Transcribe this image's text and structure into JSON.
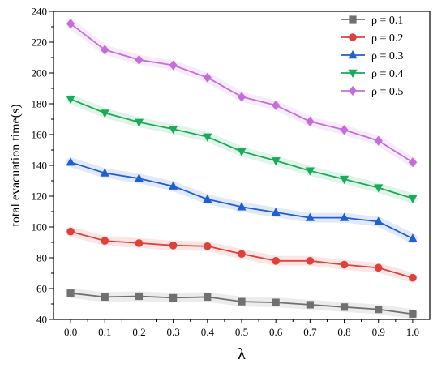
{
  "chart_data": {
    "type": "line",
    "title": "",
    "xlabel": "λ",
    "ylabel": "total evacuation time(s)",
    "x": [
      0.0,
      0.1,
      0.2,
      0.3,
      0.4,
      0.5,
      0.6,
      0.7,
      0.8,
      0.9,
      1.0
    ],
    "x_tick_labels": [
      "0.0",
      "0.1",
      "0.2",
      "0.3",
      "0.4",
      "0.5",
      "0.6",
      "0.7",
      "0.8",
      "0.9",
      "1.0"
    ],
    "xlim": [
      -0.05,
      1.05
    ],
    "ylim": [
      40,
      240
    ],
    "y_ticks": [
      40,
      60,
      80,
      100,
      120,
      140,
      160,
      180,
      200,
      220,
      240
    ],
    "grid": false,
    "legend_position": "top-right",
    "series": [
      {
        "name": "ρ = 0.1",
        "color": "#707070",
        "marker": "square",
        "values": [
          57,
          54.5,
          55,
          54,
          54.5,
          51.5,
          51,
          49.5,
          48,
          46.5,
          43.5
        ]
      },
      {
        "name": "ρ = 0.2",
        "color": "#e0403a",
        "marker": "circle",
        "values": [
          97,
          91,
          89.5,
          88,
          87.5,
          82.5,
          78,
          78,
          75.5,
          73.5,
          67
        ]
      },
      {
        "name": "ρ = 0.3",
        "color": "#1f5fd6",
        "marker": "triangle-up",
        "values": [
          142,
          135,
          131.5,
          126.5,
          118,
          113,
          109.5,
          106,
          106,
          103.5,
          92.5
        ]
      },
      {
        "name": "ρ = 0.4",
        "color": "#1aaa5a",
        "marker": "triangle-down",
        "values": [
          183,
          174,
          168,
          163.5,
          158.5,
          149,
          143,
          136.5,
          131,
          125.5,
          118.5
        ]
      },
      {
        "name": "ρ = 0.5",
        "color": "#c46fd9",
        "marker": "diamond",
        "values": [
          232,
          215,
          208.5,
          205,
          197,
          184.5,
          179,
          168.5,
          163,
          156,
          142
        ]
      }
    ]
  }
}
